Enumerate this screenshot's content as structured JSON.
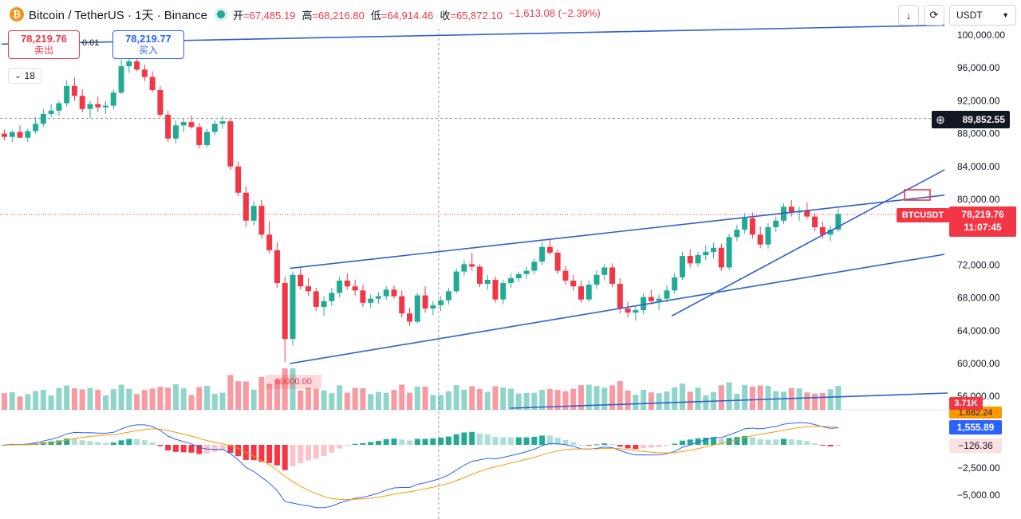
{
  "header": {
    "symbol": "Bitcoin / TetherUS · 1天 · Binance",
    "ohlc": [
      {
        "k": "开",
        "v": "=67,485.19"
      },
      {
        "k": "高",
        "v": "=68,216.80"
      },
      {
        "k": "低",
        "v": "=64,914.46"
      },
      {
        "k": "收",
        "v": "=65,872.10"
      },
      {
        "k": "",
        "v": "−1,613.08 (−2.39%)"
      }
    ]
  },
  "toolbar": {
    "download_icon": "arrow-down-icon",
    "refresh_icon": "cycle-icon",
    "currency": "USDT"
  },
  "trade": {
    "sell_price": "78,219.76",
    "sell_label": "卖出",
    "buy_price": "78,219.77",
    "buy_label": "买入",
    "qty": "0.01"
  },
  "collapse_count": "18",
  "price_axis": [
    "100,000.00",
    "96,000.00",
    "92,000.00",
    "88,000.00",
    "84,000.00",
    "80,000.00",
    "72,000.00",
    "68,000.00",
    "64,000.00",
    "60,000.00",
    "56,000.00"
  ],
  "crosshair_price": "89,852.55",
  "symbol_tag": "BTCUSDT",
  "last_price": "78,219.76",
  "countdown": "11:07:45",
  "volume_tag": "3.71K",
  "macd_signal_tag": "1,682.24",
  "macd_tag": "1,555.89",
  "hist_tag": "−126.36",
  "macd_axis": [
    "−2,500.00",
    "−5,000.00"
  ],
  "annotation_60k": "60000.00",
  "colors": {
    "up": "#22ab94",
    "down": "#f23645",
    "trend": "#2f5fd0",
    "macd": "#2962ff",
    "signal": "#ff9800"
  },
  "chart_data": {
    "type": "candlestick",
    "ylim": [
      56000,
      102000
    ],
    "candles": [
      [
        88000,
        88500,
        87200,
        87600
      ],
      [
        87600,
        88400,
        87000,
        88200
      ],
      [
        88200,
        89000,
        87800,
        87500
      ],
      [
        87500,
        88600,
        87000,
        88300
      ],
      [
        88300,
        90000,
        88000,
        89200
      ],
      [
        89200,
        91000,
        88800,
        90400
      ],
      [
        90400,
        91600,
        90000,
        90800
      ],
      [
        90800,
        92000,
        90200,
        91700
      ],
      [
        91700,
        94500,
        91300,
        93800
      ],
      [
        93800,
        94800,
        92000,
        92600
      ],
      [
        92600,
        93400,
        90600,
        91000
      ],
      [
        91000,
        92000,
        89900,
        91600
      ],
      [
        91600,
        92500,
        90600,
        91200
      ],
      [
        91200,
        92000,
        90400,
        91400
      ],
      [
        91400,
        93400,
        91000,
        93000
      ],
      [
        93000,
        97000,
        92800,
        96200
      ],
      [
        96200,
        97500,
        95400,
        96800
      ],
      [
        96800,
        97400,
        95600,
        95800
      ],
      [
        95800,
        96400,
        94400,
        94900
      ],
      [
        94900,
        95600,
        93000,
        93300
      ],
      [
        93300,
        93800,
        90000,
        90300
      ],
      [
        90300,
        90800,
        87000,
        87400
      ],
      [
        87400,
        89600,
        86800,
        89000
      ],
      [
        89000,
        89800,
        88200,
        89400
      ],
      [
        89400,
        90200,
        88600,
        88800
      ],
      [
        88800,
        89300,
        86200,
        86600
      ],
      [
        86600,
        88600,
        86300,
        88200
      ],
      [
        88200,
        89600,
        87800,
        89200
      ],
      [
        89200,
        90200,
        88600,
        89500
      ],
      [
        89500,
        89800,
        83600,
        84000
      ],
      [
        84000,
        84600,
        80400,
        80800
      ],
      [
        80800,
        81600,
        76600,
        77400
      ],
      [
        77400,
        79800,
        76800,
        79200
      ],
      [
        79200,
        79900,
        75200,
        75700
      ],
      [
        75700,
        77400,
        73400,
        73800
      ],
      [
        73800,
        74800,
        69200,
        69800
      ],
      [
        69800,
        70600,
        60200,
        63000
      ],
      [
        63000,
        71200,
        62200,
        70800
      ],
      [
        70800,
        71800,
        69000,
        69400
      ],
      [
        69400,
        70400,
        68200,
        68800
      ],
      [
        68800,
        69200,
        66400,
        66900
      ],
      [
        66900,
        68200,
        65800,
        67600
      ],
      [
        67600,
        69200,
        67000,
        68600
      ],
      [
        68600,
        70600,
        68100,
        70100
      ],
      [
        70100,
        71000,
        69000,
        69400
      ],
      [
        69400,
        70200,
        68300,
        68900
      ],
      [
        68900,
        69600,
        66900,
        67400
      ],
      [
        67400,
        68400,
        66800,
        67900
      ],
      [
        67900,
        68700,
        67300,
        68200
      ],
      [
        68200,
        69400,
        67800,
        69000
      ],
      [
        69000,
        69500,
        67900,
        68200
      ],
      [
        68200,
        68900,
        65600,
        66100
      ],
      [
        66100,
        66800,
        64600,
        65100
      ],
      [
        65100,
        68600,
        64900,
        68300
      ],
      [
        68300,
        69400,
        66200,
        66700
      ],
      [
        66700,
        67600,
        65900,
        67100
      ],
      [
        67100,
        68200,
        66400,
        67700
      ],
      [
        67700,
        69200,
        67200,
        68800
      ],
      [
        68800,
        71600,
        68500,
        71200
      ],
      [
        71200,
        72600,
        70700,
        72100
      ],
      [
        72100,
        73500,
        71300,
        71800
      ],
      [
        71800,
        72100,
        69300,
        69700
      ],
      [
        69700,
        70800,
        69000,
        70200
      ],
      [
        70200,
        70600,
        67400,
        67800
      ],
      [
        67800,
        70200,
        67200,
        69800
      ],
      [
        69800,
        71000,
        69200,
        70400
      ],
      [
        70400,
        71200,
        69900,
        70900
      ],
      [
        70900,
        71800,
        70300,
        71300
      ],
      [
        71300,
        72800,
        70900,
        72400
      ],
      [
        72400,
        74800,
        72000,
        74200
      ],
      [
        74200,
        75100,
        73200,
        73500
      ],
      [
        73500,
        73900,
        70900,
        71300
      ],
      [
        71300,
        71900,
        69600,
        70100
      ],
      [
        70100,
        70800,
        68900,
        69400
      ],
      [
        69400,
        70100,
        67400,
        67800
      ],
      [
        67800,
        70100,
        67500,
        69600
      ],
      [
        69600,
        71400,
        69100,
        70800
      ],
      [
        70800,
        72100,
        70100,
        71700
      ],
      [
        71700,
        72200,
        69300,
        69700
      ],
      [
        69700,
        70400,
        66100,
        66700
      ],
      [
        66700,
        67500,
        65600,
        66200
      ],
      [
        66200,
        67100,
        65200,
        66500
      ],
      [
        66500,
        68600,
        66000,
        68100
      ],
      [
        68100,
        69000,
        67200,
        67600
      ],
      [
        67600,
        68400,
        66500,
        67900
      ],
      [
        67900,
        69500,
        67500,
        68900
      ],
      [
        68900,
        71000,
        68500,
        70500
      ],
      [
        70500,
        73600,
        70200,
        73100
      ],
      [
        73100,
        73900,
        71700,
        72200
      ],
      [
        72200,
        73600,
        71800,
        73200
      ],
      [
        73200,
        74400,
        72600,
        73600
      ],
      [
        73600,
        74700,
        72800,
        74100
      ],
      [
        74100,
        74600,
        71300,
        71700
      ],
      [
        71700,
        75800,
        71400,
        75400
      ],
      [
        75400,
        76900,
        74900,
        76300
      ],
      [
        76300,
        78300,
        75800,
        77700
      ],
      [
        77700,
        78400,
        75200,
        75700
      ],
      [
        75700,
        76700,
        74100,
        74500
      ],
      [
        74500,
        77100,
        74000,
        76600
      ],
      [
        76600,
        77900,
        76000,
        77400
      ],
      [
        77400,
        79500,
        77000,
        79100
      ],
      [
        79100,
        79900,
        77900,
        78400
      ],
      [
        78400,
        79100,
        77400,
        78600
      ],
      [
        78600,
        79600,
        77600,
        77900
      ],
      [
        77900,
        78300,
        76100,
        76600
      ],
      [
        76600,
        77300,
        75200,
        75700
      ],
      [
        75700,
        76800,
        74900,
        76300
      ],
      [
        76300,
        78900,
        76000,
        78220
      ]
    ],
    "volume_tags": [
      "3.71K"
    ]
  }
}
